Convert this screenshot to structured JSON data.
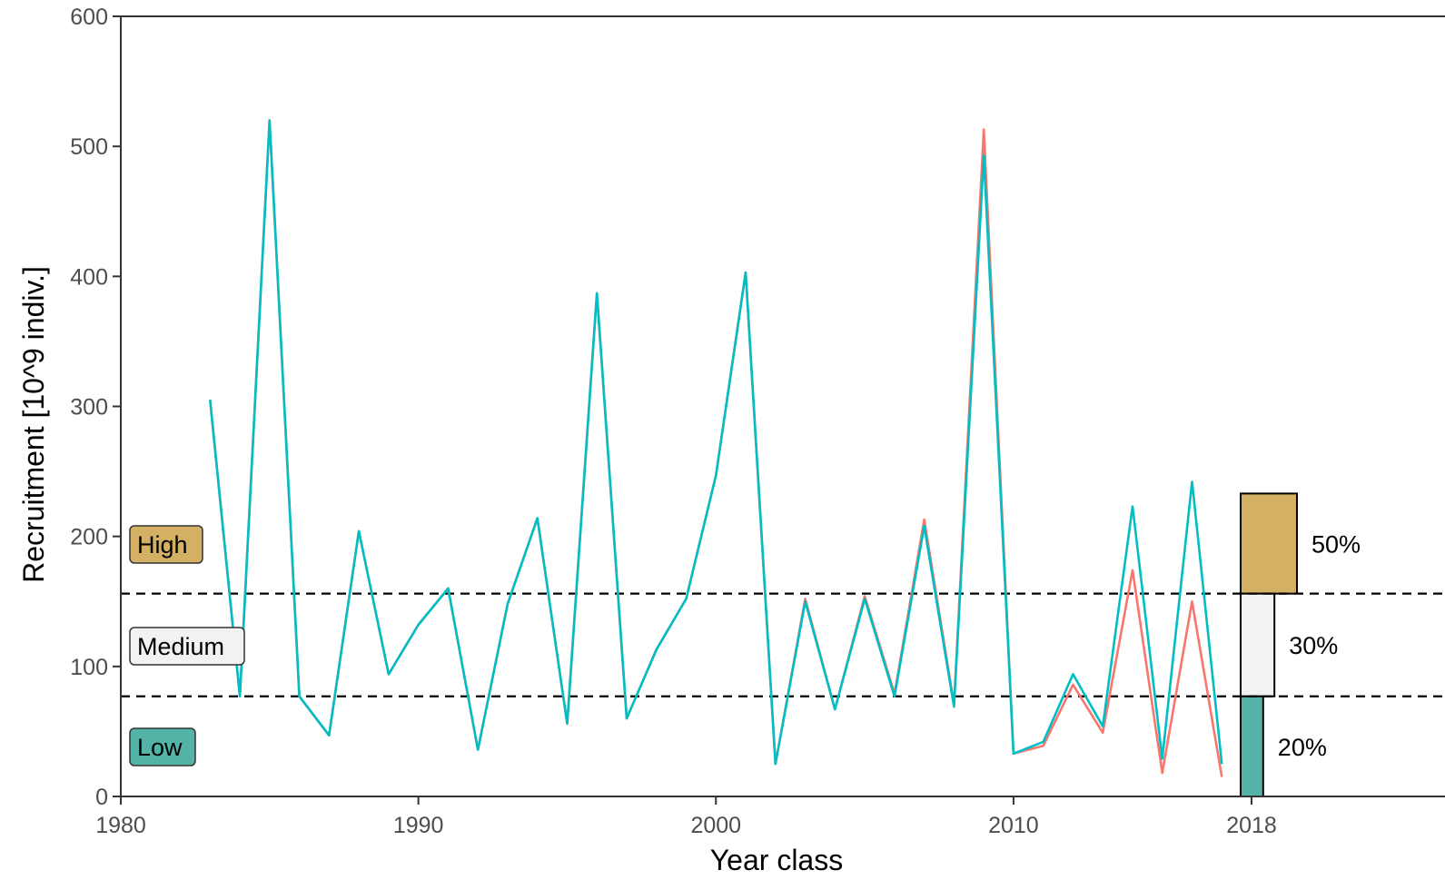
{
  "chart_data": {
    "type": "line",
    "xlabel": "Year class",
    "ylabel": "Recruitment [10^9 indiv.]",
    "xlim": [
      1980,
      2024.5
    ],
    "ylim": [
      0,
      600
    ],
    "x_ticks": [
      1980,
      1990,
      2000,
      2010,
      2018
    ],
    "y_ticks": [
      0,
      100,
      200,
      300,
      400,
      500,
      600
    ],
    "grid": false,
    "thresholds": [
      77,
      156
    ],
    "categories": [
      {
        "label": "High",
        "color": "#D4B064",
        "percent_label": "50%",
        "bar_value": 0.5
      },
      {
        "label": "Medium",
        "color": "#F2F2F2",
        "percent_label": "30%",
        "bar_value": 0.3
      },
      {
        "label": "Low",
        "color": "#52B3A6",
        "percent_label": "20%",
        "bar_value": 0.2
      }
    ],
    "series": [
      {
        "color": "#F8766D",
        "x": [
          1983,
          1984,
          1985,
          1986,
          1987,
          1988,
          1989,
          1990,
          1991,
          1992,
          1993,
          1994,
          1995,
          1996,
          1997,
          1998,
          1999,
          2000,
          2001,
          2002,
          2003,
          2004,
          2005,
          2006,
          2007,
          2008,
          2009,
          2010,
          2011,
          2012,
          2013,
          2014,
          2015,
          2016,
          2017
        ],
        "values": [
          305,
          77,
          520,
          77,
          47,
          204,
          94,
          132,
          160,
          36,
          148,
          214,
          56,
          387,
          60,
          113,
          152,
          247,
          403,
          25,
          152,
          67,
          154,
          79,
          213,
          71,
          513,
          33,
          39,
          86,
          49,
          174,
          18,
          150,
          15
        ]
      },
      {
        "color": "#00BFC4",
        "x": [
          1983,
          1984,
          1985,
          1986,
          1987,
          1988,
          1989,
          1990,
          1991,
          1992,
          1993,
          1994,
          1995,
          1996,
          1997,
          1998,
          1999,
          2000,
          2001,
          2002,
          2003,
          2004,
          2005,
          2006,
          2007,
          2008,
          2009,
          2010,
          2011,
          2012,
          2013,
          2014,
          2015,
          2016,
          2017
        ],
        "values": [
          305,
          77,
          520,
          77,
          47,
          204,
          94,
          132,
          160,
          36,
          148,
          214,
          56,
          387,
          60,
          113,
          152,
          247,
          403,
          25,
          150,
          67,
          152,
          77,
          208,
          69,
          493,
          33,
          42,
          94,
          54,
          223,
          29,
          242,
          25
        ]
      }
    ]
  }
}
